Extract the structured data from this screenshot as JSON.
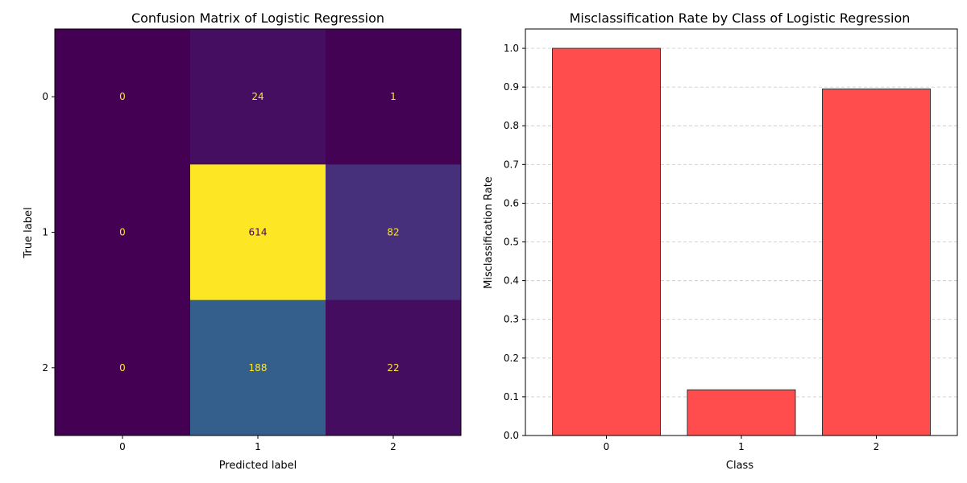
{
  "chart_data": [
    {
      "type": "heatmap",
      "title": "Confusion Matrix of Logistic Regression",
      "xlabel": "Predicted label",
      "ylabel": "True label",
      "x_categories": [
        "0",
        "1",
        "2"
      ],
      "y_categories": [
        "0",
        "1",
        "2"
      ],
      "values": [
        [
          0,
          24,
          1
        ],
        [
          0,
          614,
          82
        ],
        [
          0,
          188,
          22
        ]
      ],
      "colormap": "viridis",
      "colorbar": false,
      "grid": false
    },
    {
      "type": "bar",
      "title": "Misclassification Rate by Class of Logistic Regression",
      "xlabel": "Class",
      "ylabel": "Misclassification Rate",
      "categories": [
        "0",
        "1",
        "2"
      ],
      "values": [
        1.0,
        0.118,
        0.895
      ],
      "ylim": [
        0,
        1.05
      ],
      "yticks": [
        0.0,
        0.1,
        0.2,
        0.3,
        0.4,
        0.5,
        0.6,
        0.7,
        0.8,
        0.9,
        1.0
      ],
      "ytick_labels": [
        "0.0",
        "0.1",
        "0.2",
        "0.3",
        "0.4",
        "0.5",
        "0.6",
        "0.7",
        "0.8",
        "0.9",
        "1.0"
      ],
      "grid": "y-dashed",
      "bar_color": "#ff4c4c",
      "edge_color": "#333333"
    }
  ]
}
